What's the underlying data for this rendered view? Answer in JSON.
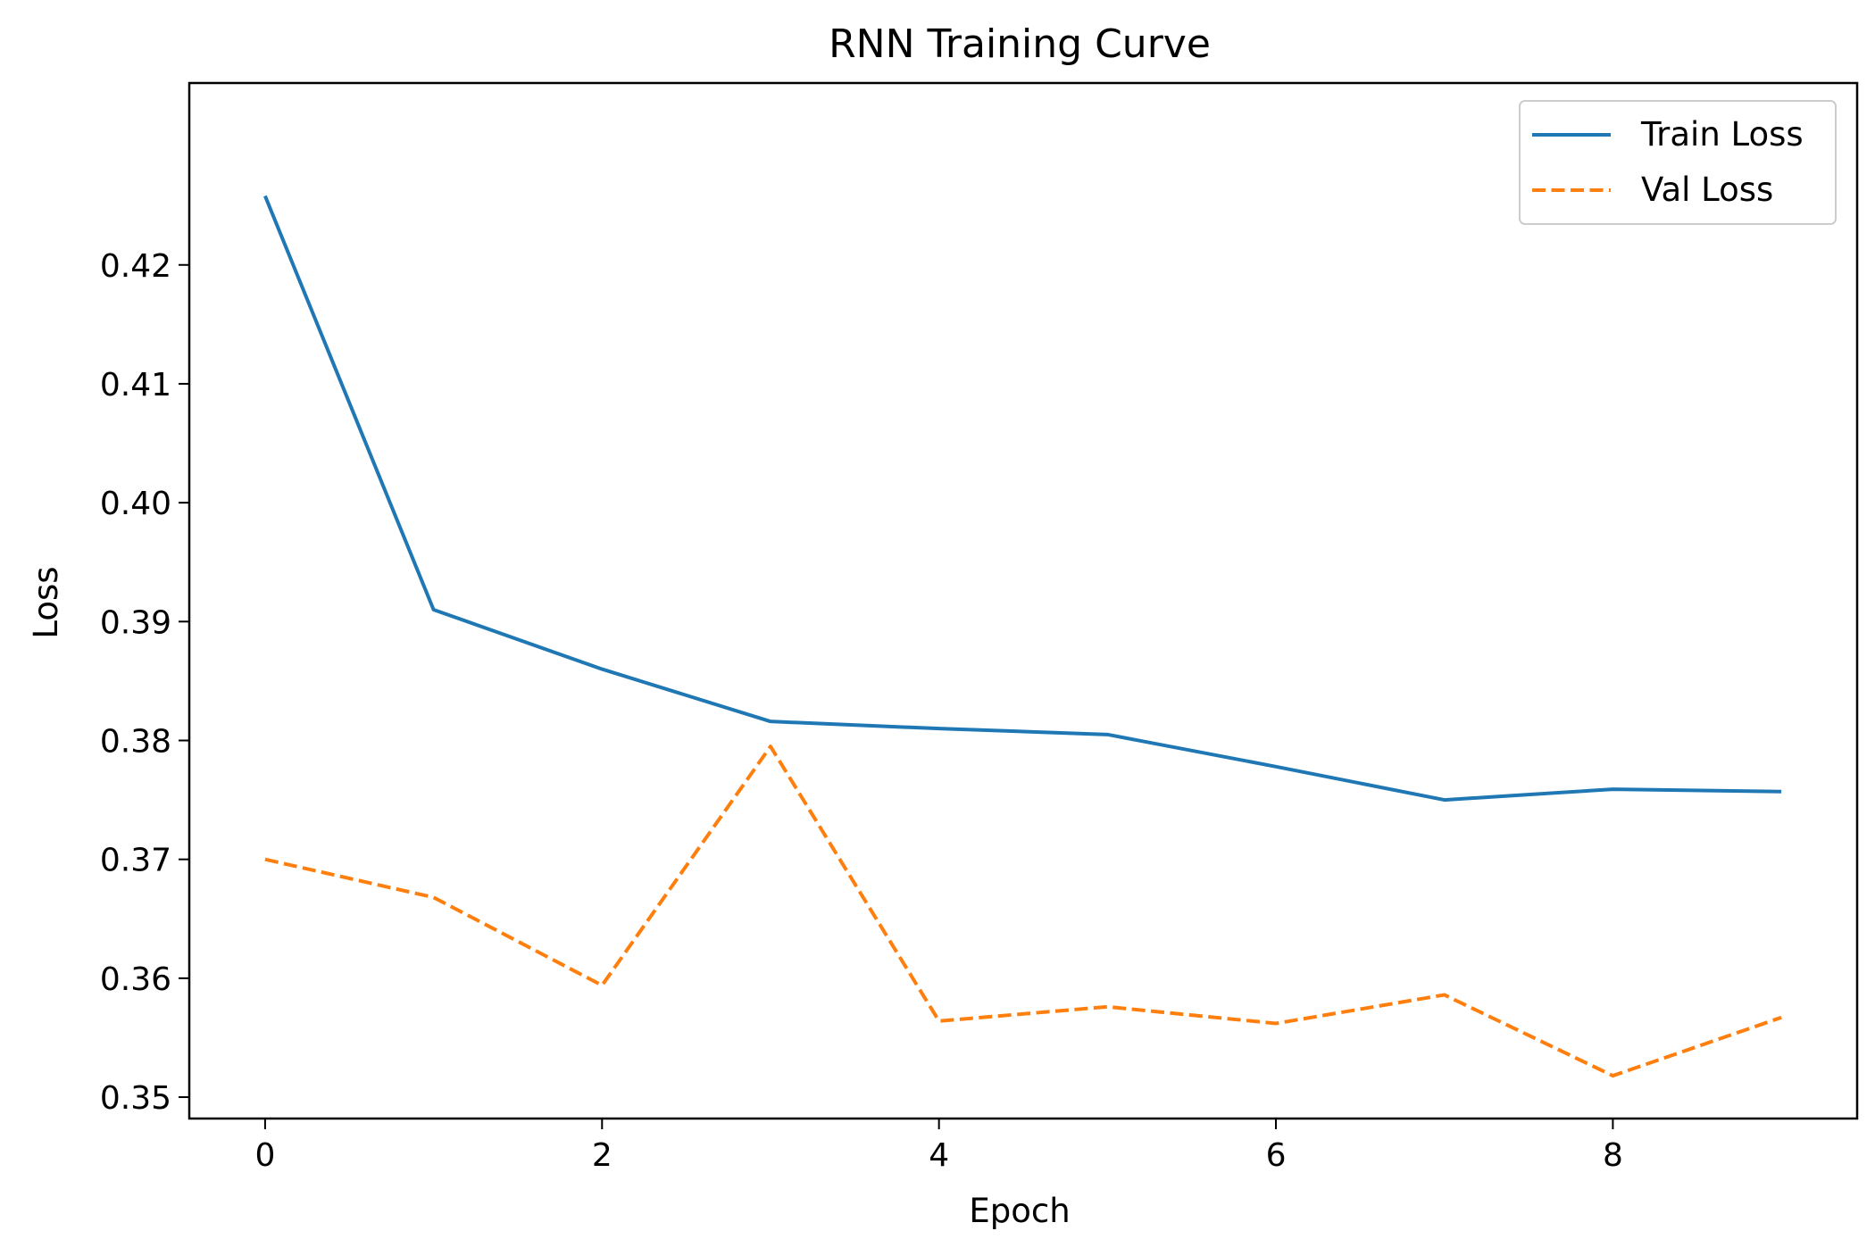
{
  "chart_data": {
    "type": "line",
    "title": "RNN Training Curve",
    "xlabel": "Epoch",
    "ylabel": "Loss",
    "x": [
      0,
      1,
      2,
      3,
      4,
      5,
      6,
      7,
      8,
      9
    ],
    "xlim": [
      -0.45,
      9.45
    ],
    "ylim": [
      0.3482,
      0.4353
    ],
    "xticks": [
      0,
      2,
      4,
      6,
      8
    ],
    "xtick_labels": [
      "0",
      "2",
      "4",
      "6",
      "8"
    ],
    "yticks": [
      0.35,
      0.36,
      0.37,
      0.38,
      0.39,
      0.4,
      0.41,
      0.42
    ],
    "ytick_labels": [
      "0.35",
      "0.36",
      "0.37",
      "0.38",
      "0.39",
      "0.40",
      "0.41",
      "0.42"
    ],
    "grid": false,
    "legend_position": "top-right",
    "series": [
      {
        "name": "Train Loss",
        "style": "solid",
        "color": "#1f77b4",
        "values": [
          0.4258,
          0.391,
          0.386,
          0.3816,
          0.381,
          0.3805,
          0.3778,
          0.375,
          0.3759,
          0.3757
        ]
      },
      {
        "name": "Val Loss",
        "style": "dashed",
        "color": "#ff7f0e",
        "values": [
          0.37,
          0.3668,
          0.3594,
          0.3795,
          0.3564,
          0.3576,
          0.3562,
          0.3586,
          0.3518,
          0.3567
        ]
      }
    ]
  }
}
